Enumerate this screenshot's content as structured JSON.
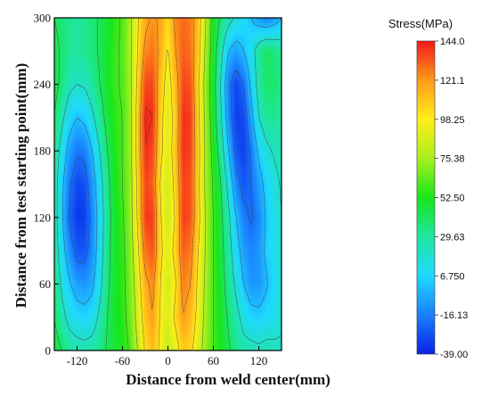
{
  "chart_data": {
    "type": "heatmap",
    "title": "",
    "xlabel": "Distance from weld center(mm)",
    "ylabel": "Distance from test starting point(mm)",
    "xlim": [
      -150,
      150
    ],
    "ylim": [
      0,
      300
    ],
    "x_ticks": [
      -120,
      -60,
      0,
      60,
      120
    ],
    "y_ticks": [
      0,
      60,
      120,
      180,
      240,
      300
    ],
    "colorbar": {
      "title": "Stress(MPa)",
      "min": -39.0,
      "max": 144.0,
      "tick_labels": [
        "144.0",
        "121.1",
        "98.25",
        "75.38",
        "52.50",
        "29.63",
        "6.750",
        "-16.13",
        "-39.00"
      ],
      "tick_values": [
        144.0,
        121.1,
        98.25,
        75.38,
        52.5,
        29.63,
        6.75,
        -16.13,
        -39.0
      ],
      "colors": [
        "#0a22e6",
        "#1a7fff",
        "#1fd9ff",
        "#1fe6a0",
        "#17e61a",
        "#a8f01e",
        "#ffee1a",
        "#ff9a1a",
        "#f21a1a"
      ]
    },
    "contour_lines": "dashed",
    "grid": false,
    "field": {
      "x": [
        -150,
        -140,
        -130,
        -120,
        -110,
        -100,
        -90,
        -80,
        -70,
        -60,
        -50,
        -40,
        -30,
        -20,
        -10,
        0,
        10,
        20,
        30,
        40,
        50,
        60,
        70,
        80,
        90,
        100,
        110,
        120,
        130,
        140,
        150
      ],
      "y": [
        0,
        30,
        60,
        90,
        120,
        150,
        180,
        210,
        240,
        270,
        300
      ],
      "values": [
        [
          48,
          40,
          30,
          28,
          26,
          28,
          34,
          42,
          48,
          52,
          62,
          80,
          102,
          112,
          96,
          82,
          92,
          108,
          104,
          88,
          72,
          60,
          52,
          42,
          34,
          26,
          26,
          24,
          26,
          24,
          22
        ],
        [
          40,
          26,
          14,
          8,
          6,
          10,
          24,
          40,
          50,
          55,
          66,
          86,
          110,
          120,
          98,
          88,
          104,
          120,
          112,
          94,
          74,
          60,
          50,
          38,
          26,
          14,
          6,
          4,
          8,
          12,
          18
        ],
        [
          36,
          16,
          2,
          -8,
          -10,
          -4,
          14,
          36,
          50,
          56,
          68,
          90,
          116,
          124,
          100,
          86,
          98,
          126,
          120,
          96,
          76,
          60,
          48,
          32,
          16,
          0,
          -10,
          -10,
          -2,
          8,
          16
        ],
        [
          32,
          8,
          -12,
          -26,
          -26,
          -12,
          10,
          34,
          50,
          56,
          70,
          96,
          128,
          134,
          104,
          90,
          106,
          132,
          126,
          100,
          78,
          60,
          46,
          28,
          8,
          -8,
          -14,
          -10,
          4,
          12,
          18
        ],
        [
          30,
          2,
          -22,
          -34,
          -32,
          -14,
          8,
          32,
          50,
          58,
          72,
          102,
          138,
          138,
          102,
          84,
          102,
          138,
          134,
          106,
          78,
          60,
          44,
          24,
          0,
          -16,
          -22,
          -14,
          2,
          12,
          20
        ],
        [
          30,
          4,
          -18,
          -30,
          -28,
          -10,
          12,
          34,
          52,
          60,
          72,
          104,
          136,
          132,
          98,
          86,
          106,
          136,
          134,
          104,
          76,
          58,
          40,
          14,
          -14,
          -26,
          -20,
          -8,
          6,
          14,
          22
        ],
        [
          34,
          12,
          -8,
          -18,
          -16,
          0,
          20,
          40,
          54,
          60,
          74,
          108,
          140,
          136,
          104,
          90,
          110,
          140,
          136,
          106,
          76,
          54,
          30,
          0,
          -26,
          -32,
          -18,
          4,
          16,
          22,
          26
        ],
        [
          40,
          24,
          8,
          0,
          4,
          16,
          32,
          46,
          56,
          60,
          74,
          108,
          142,
          140,
          106,
          88,
          108,
          140,
          138,
          104,
          74,
          50,
          22,
          -12,
          -32,
          -30,
          -6,
          20,
          30,
          32,
          30
        ],
        [
          46,
          36,
          24,
          20,
          22,
          30,
          40,
          50,
          58,
          62,
          74,
          104,
          136,
          136,
          110,
          92,
          112,
          136,
          134,
          102,
          72,
          48,
          18,
          -16,
          -30,
          -20,
          4,
          28,
          40,
          38,
          34
        ],
        [
          44,
          38,
          32,
          30,
          32,
          36,
          42,
          50,
          58,
          62,
          76,
          100,
          124,
          128,
          116,
          98,
          120,
          132,
          128,
          108,
          76,
          50,
          26,
          0,
          -8,
          0,
          12,
          30,
          40,
          36,
          30
        ],
        [
          40,
          36,
          32,
          30,
          32,
          36,
          42,
          48,
          56,
          62,
          76,
          98,
          116,
          122,
          118,
          104,
          124,
          130,
          126,
          110,
          80,
          52,
          38,
          26,
          18,
          10,
          0,
          -10,
          -16,
          -10,
          0
        ]
      ]
    }
  }
}
